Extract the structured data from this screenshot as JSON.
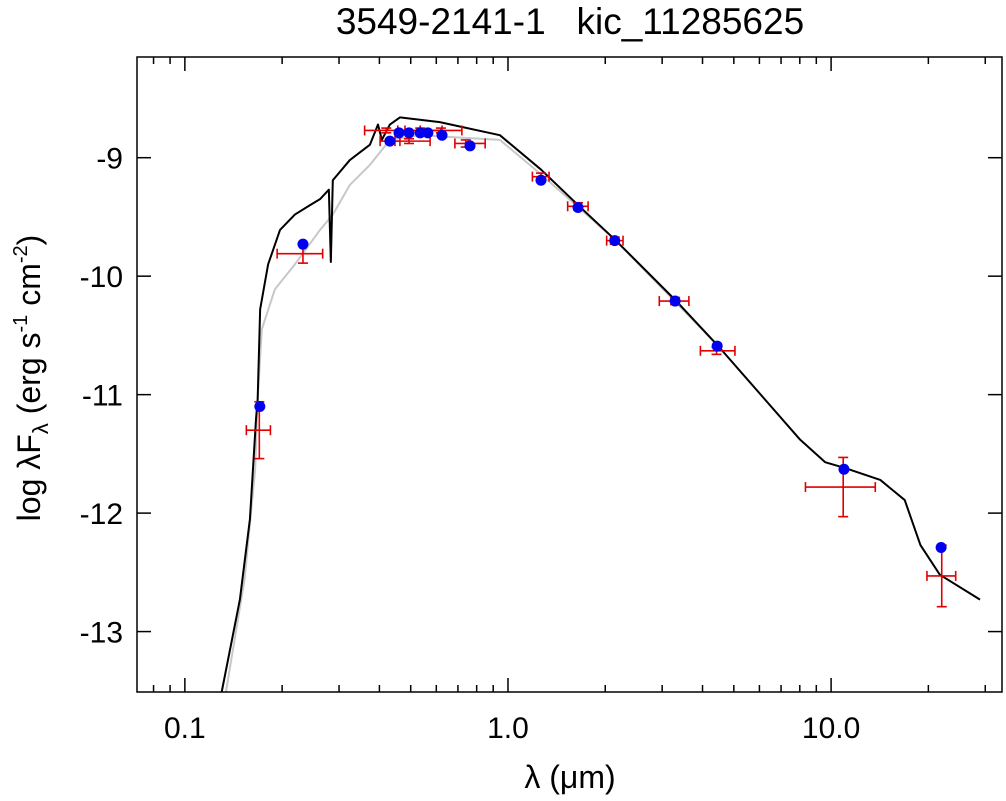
{
  "chart_data": {
    "type": "scatter",
    "title": "3549-2141-1   kic_11285625",
    "xlabel": "λ (μm)",
    "ylabel": [
      "log λF",
      "λ",
      " (erg s",
      "-1",
      " cm",
      "-2",
      ")"
    ],
    "xscale": "log",
    "xlim": [
      0.0711,
      33.8
    ],
    "ylim": [
      -13.51,
      -8.15
    ],
    "xticks": [
      0.1,
      {
        "value": 1,
        "label": "1.0"
      },
      {
        "value": 10,
        "label": "10.0"
      }
    ],
    "yticks": [
      -13,
      -12,
      -11,
      -10,
      -9
    ],
    "series": [
      {
        "type": "line",
        "color": "#c8c8c8",
        "x": [
          0.134,
          0.153,
          0.165,
          0.168,
          0.173,
          0.19,
          0.219,
          0.262,
          0.287,
          0.324,
          0.374,
          0.431,
          0.535,
          0.944,
          1.265,
          2.14,
          4.44
        ],
        "y": [
          -13.51,
          -12.56,
          -11.63,
          -11.04,
          -10.45,
          -10.11,
          -9.9,
          -9.61,
          -9.48,
          -9.23,
          -9.06,
          -8.85,
          -8.81,
          -8.85,
          -9.14,
          -9.69,
          -10.58
        ]
      },
      {
        "type": "line",
        "color": "#000000",
        "x": [
          0.13,
          0.148,
          0.159,
          0.166,
          0.168,
          0.171,
          0.181,
          0.197,
          0.219,
          0.244,
          0.262,
          0.279,
          0.283,
          0.287,
          0.324,
          0.374,
          0.396,
          0.407,
          0.431,
          0.463,
          0.615,
          0.944,
          1.265,
          1.647,
          2.14,
          3.29,
          4.44,
          8.02,
          9.58,
          11.05,
          14.2,
          16.9,
          18.9,
          21.7,
          28.9
        ],
        "y": [
          -13.51,
          -12.73,
          -12.05,
          -11.21,
          -11.04,
          -10.28,
          -9.9,
          -9.61,
          -9.48,
          -9.4,
          -9.35,
          -9.27,
          -9.88,
          -9.19,
          -9.02,
          -8.89,
          -8.72,
          -8.85,
          -8.72,
          -8.66,
          -8.7,
          -8.81,
          -9.1,
          -9.4,
          -9.69,
          -10.2,
          -10.58,
          -11.38,
          -11.57,
          -11.62,
          -11.72,
          -11.89,
          -12.27,
          -12.52,
          -12.73
        ]
      },
      {
        "type": "errorbar",
        "color": "#e00000",
        "x": [
          0.17,
          0.232,
          0.431,
          0.42,
          0.494,
          0.535,
          0.62,
          0.74,
          1.265,
          1.647,
          2.14,
          3.29,
          4.42,
          10.9,
          22.0
        ],
        "xlo": [
          0.155,
          0.193,
          0.402,
          0.36,
          0.447,
          0.456,
          0.535,
          0.685,
          1.19,
          1.53,
          2.02,
          2.94,
          3.94,
          8.33,
          19.8
        ],
        "xhi": [
          0.184,
          0.267,
          0.463,
          0.48,
          0.574,
          0.625,
          0.72,
          0.85,
          1.34,
          1.77,
          2.27,
          3.63,
          5.04,
          13.7,
          24.3
        ],
        "y": [
          -11.3,
          -9.81,
          -8.86,
          -8.77,
          -8.86,
          -8.77,
          -8.77,
          -8.88,
          -9.16,
          -9.41,
          -9.7,
          -10.21,
          -10.63,
          -11.78,
          -12.53
        ],
        "yerr": [
          0.24,
          0.08,
          0.02,
          0.02,
          0.02,
          0.02,
          0.02,
          0.03,
          0.03,
          0.03,
          0.03,
          0.03,
          0.03,
          0.25,
          0.26
        ]
      },
      {
        "type": "points",
        "color": "#0000ee",
        "x": [
          0.1706,
          0.232,
          0.431,
          0.46,
          0.494,
          0.535,
          0.565,
          0.625,
          0.763,
          1.265,
          1.647,
          2.14,
          3.29,
          4.44,
          10.96,
          21.9
        ],
        "y": [
          -11.1,
          -9.73,
          -8.86,
          -8.79,
          -8.79,
          -8.79,
          -8.79,
          -8.81,
          -8.9,
          -9.19,
          -9.42,
          -9.7,
          -10.21,
          -10.59,
          -11.63,
          -12.29
        ]
      }
    ]
  }
}
